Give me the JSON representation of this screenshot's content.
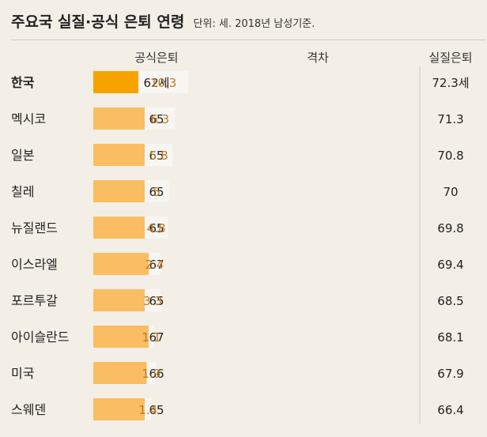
{
  "header": {
    "title": "주요국 실질·공식 은퇴 연령",
    "subtitle": "단위: 세. 2018년 남성기준."
  },
  "columns": {
    "official": "공식은퇴",
    "gap": "격차",
    "effective": "실질은퇴"
  },
  "colors": {
    "official_bar": "#fbbd62",
    "official_bar_highlight": "#f6a300",
    "gap_bar": "#f8f6f2",
    "gap_text": "#c0791f",
    "background": "#f3efe7"
  },
  "chart_data": {
    "type": "bar",
    "stacked": true,
    "orientation": "horizontal",
    "categories": [
      "한국",
      "멕시코",
      "일본",
      "칠레",
      "뉴질랜드",
      "이스라엘",
      "포르투갈",
      "아이슬란드",
      "미국",
      "스웨덴"
    ],
    "series": [
      {
        "name": "공식은퇴",
        "values": [
          62,
          65,
          65,
          65,
          65,
          67,
          65,
          67,
          66,
          65
        ]
      },
      {
        "name": "격차",
        "values": [
          10.3,
          6.3,
          5.8,
          5,
          4.8,
          2.4,
          3.3,
          1.1,
          1.9,
          1.4
        ]
      }
    ],
    "official_labels": [
      "62세",
      "65",
      "65",
      "65",
      "65",
      "67",
      "65",
      "67",
      "66",
      "65"
    ],
    "gap_labels": [
      "10.3",
      "6.3",
      "5.8",
      "5",
      "4.8",
      "2.4",
      "3.3",
      "1.1",
      "1.9",
      "1.4"
    ],
    "effective_labels": [
      "72.3세",
      "71.3",
      "70.8",
      "70",
      "69.8",
      "69.4",
      "68.5",
      "68.1",
      "67.9",
      "66.4"
    ],
    "highlight_index": 0
  }
}
